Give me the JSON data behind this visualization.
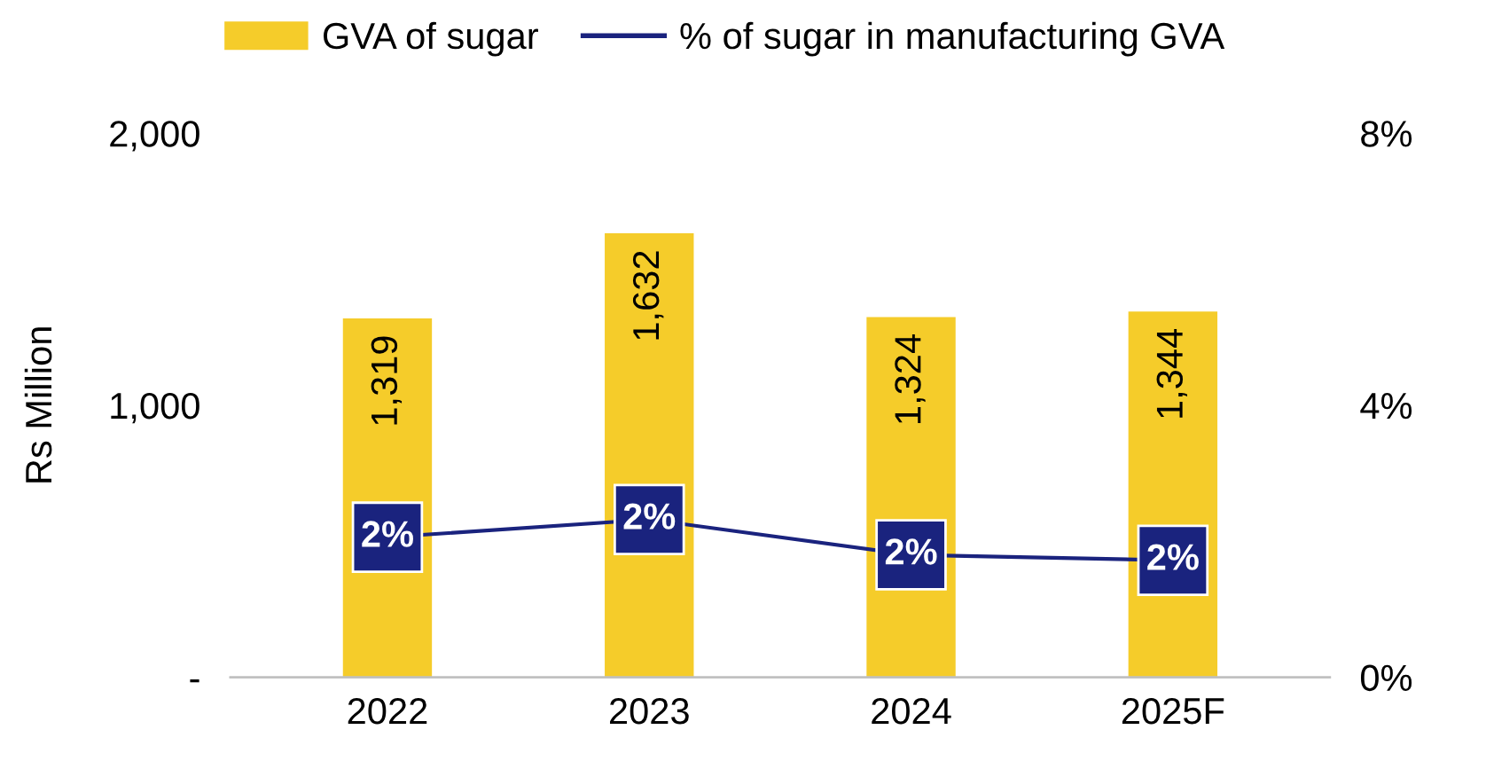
{
  "chart_data": {
    "type": "bar",
    "categories": [
      "2022",
      "2023",
      "2024",
      "2025F"
    ],
    "series": [
      {
        "name": "GVA of sugar",
        "color": "#f5cc2a",
        "values": [
          1319,
          1632,
          1324,
          1344
        ],
        "value_labels": [
          "1,319",
          "1,632",
          "1,324",
          "1,344"
        ]
      },
      {
        "name": "% of sugar in manufacturing GVA",
        "type": "line",
        "axis": "y2",
        "marker": "square",
        "color": "#1a237e",
        "values": [
          2.06,
          2.32,
          1.8,
          1.72
        ],
        "value_labels": [
          "2%",
          "2%",
          "2%",
          "2%"
        ]
      }
    ],
    "ylabel": "Rs Million",
    "ylim": [
      0,
      2000
    ],
    "yticks": [
      {
        "value": 0,
        "label": "-"
      },
      {
        "value": 1000,
        "label": "1,000"
      },
      {
        "value": 2000,
        "label": "2,000"
      }
    ],
    "y2lim": [
      0,
      8
    ],
    "y2ticks": [
      {
        "value": 0,
        "label": "0%"
      },
      {
        "value": 4,
        "label": "4%"
      },
      {
        "value": 8,
        "label": "8%"
      }
    ],
    "legend": "top",
    "grid": false
  }
}
